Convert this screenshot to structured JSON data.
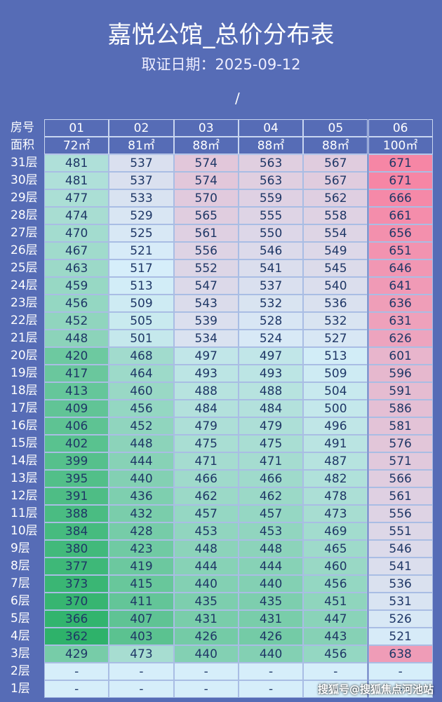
{
  "header": {
    "title": "嘉悦公馆_总价分布表",
    "subtitle": "取证日期：2025-09-12",
    "mark": "/"
  },
  "table": {
    "columns": [
      "房号",
      "01",
      "02",
      "03",
      "04",
      "05",
      "06"
    ],
    "areas": [
      "面积",
      "72㎡",
      "81㎡",
      "88㎡",
      "88㎡",
      "88㎡",
      "100㎡"
    ],
    "rows": [
      [
        "31层",
        481,
        537,
        574,
        563,
        567,
        671
      ],
      [
        "30层",
        481,
        537,
        574,
        563,
        567,
        671
      ],
      [
        "29层",
        477,
        533,
        570,
        559,
        562,
        666
      ],
      [
        "28层",
        474,
        529,
        565,
        555,
        558,
        661
      ],
      [
        "27层",
        470,
        525,
        561,
        550,
        554,
        656
      ],
      [
        "26层",
        467,
        521,
        556,
        546,
        549,
        651
      ],
      [
        "25层",
        463,
        517,
        552,
        541,
        545,
        646
      ],
      [
        "24层",
        459,
        513,
        547,
        537,
        540,
        641
      ],
      [
        "23层",
        456,
        509,
        543,
        532,
        536,
        636
      ],
      [
        "22层",
        452,
        505,
        539,
        528,
        532,
        631
      ],
      [
        "21层",
        448,
        501,
        534,
        524,
        527,
        626
      ],
      [
        "20层",
        420,
        468,
        497,
        497,
        513,
        601
      ],
      [
        "19层",
        417,
        464,
        493,
        493,
        509,
        596
      ],
      [
        "18层",
        413,
        460,
        488,
        488,
        504,
        591
      ],
      [
        "17层",
        409,
        456,
        484,
        484,
        500,
        586
      ],
      [
        "16层",
        406,
        452,
        479,
        479,
        496,
        581
      ],
      [
        "15层",
        402,
        448,
        475,
        475,
        491,
        576
      ],
      [
        "14层",
        399,
        444,
        471,
        471,
        487,
        571
      ],
      [
        "13层",
        395,
        440,
        466,
        466,
        482,
        566
      ],
      [
        "12层",
        391,
        436,
        462,
        462,
        478,
        561
      ],
      [
        "11层",
        388,
        432,
        457,
        457,
        473,
        556
      ],
      [
        "10层",
        384,
        428,
        453,
        453,
        469,
        551
      ],
      [
        "9层",
        380,
        423,
        448,
        448,
        465,
        546
      ],
      [
        "8层",
        377,
        419,
        444,
        444,
        460,
        541
      ],
      [
        "7层",
        373,
        415,
        440,
        440,
        456,
        536
      ],
      [
        "6层",
        370,
        411,
        435,
        435,
        451,
        531
      ],
      [
        "5层",
        366,
        407,
        431,
        431,
        447,
        526
      ],
      [
        "4层",
        362,
        403,
        426,
        426,
        443,
        521
      ],
      [
        "3层",
        429,
        473,
        440,
        440,
        456,
        638
      ],
      [
        "2层",
        "-",
        "-",
        "-",
        "-",
        "-",
        "-"
      ],
      [
        "1层",
        "-",
        "-",
        "-",
        "-",
        "-",
        "-"
      ]
    ]
  },
  "footer": {
    "watermark": "搜狐号@搜狐焦点河池站"
  }
}
